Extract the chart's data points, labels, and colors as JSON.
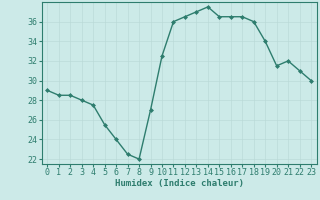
{
  "x": [
    0,
    1,
    2,
    3,
    4,
    5,
    6,
    7,
    8,
    9,
    10,
    11,
    12,
    13,
    14,
    15,
    16,
    17,
    18,
    19,
    20,
    21,
    22,
    23
  ],
  "y": [
    29,
    28.5,
    28.5,
    28,
    27.5,
    25.5,
    24,
    22.5,
    22,
    27,
    32.5,
    36,
    36.5,
    37,
    37.5,
    36.5,
    36.5,
    36.5,
    36,
    34,
    31.5,
    32,
    31,
    30
  ],
  "line_color": "#2e7d6e",
  "marker_color": "#2e7d6e",
  "bg_color": "#cceae8",
  "grid_color_major": "#b8d8d5",
  "grid_color_minor": "#d4eceb",
  "xlabel": "Humidex (Indice chaleur)",
  "xlim": [
    -0.5,
    23.5
  ],
  "ylim": [
    21.5,
    38.0
  ],
  "yticks": [
    22,
    24,
    26,
    28,
    30,
    32,
    34,
    36
  ],
  "xticks": [
    0,
    1,
    2,
    3,
    4,
    5,
    6,
    7,
    8,
    9,
    10,
    11,
    12,
    13,
    14,
    15,
    16,
    17,
    18,
    19,
    20,
    21,
    22,
    23
  ],
  "xlabel_fontsize": 6.5,
  "tick_fontsize": 6.0,
  "linewidth": 1.0,
  "markersize": 2.0
}
